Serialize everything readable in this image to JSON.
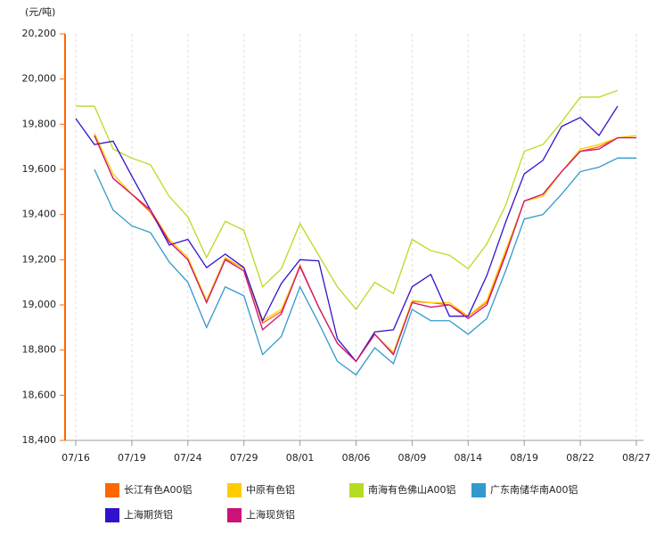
{
  "chart_data": {
    "type": "line",
    "y_unit": "(元/吨)",
    "categories": [
      "07/16",
      null,
      null,
      "07/19",
      null,
      null,
      "07/24",
      null,
      null,
      "07/29",
      null,
      null,
      "08/01",
      null,
      null,
      "08/06",
      null,
      null,
      "08/09",
      null,
      null,
      "08/14",
      null,
      null,
      "08/19",
      null,
      null,
      "08/22",
      null,
      null,
      "08/27"
    ],
    "ylim": [
      18400,
      20200
    ],
    "yticks": [
      {
        "value": 18400,
        "label": "18,400"
      },
      {
        "value": 18600,
        "label": "18,600"
      },
      {
        "value": 18800,
        "label": "18,800"
      },
      {
        "value": 19000,
        "label": "19,000"
      },
      {
        "value": 19200,
        "label": "19,200"
      },
      {
        "value": 19400,
        "label": "19,400"
      },
      {
        "value": 19600,
        "label": "19,600"
      },
      {
        "value": 19800,
        "label": "19,800"
      },
      {
        "value": 20000,
        "label": "20,000"
      },
      {
        "value": 20200,
        "label": "20,200"
      }
    ],
    "grid": true,
    "series": [
      {
        "name": "长江有色A00铝",
        "color": "#ff6600",
        "values": [
          null,
          19750,
          19560,
          19490,
          19410,
          19280,
          19200,
          19015,
          19205,
          19160,
          18920,
          18970,
          19175,
          18990,
          18830,
          18750,
          18870,
          18785,
          19015,
          19010,
          19000,
          18950,
          19010,
          19230,
          19460,
          19490,
          19590,
          19680,
          19700,
          19740,
          19740
        ]
      },
      {
        "name": "中原有色铝",
        "color": "#ffcc00",
        "values": [
          null,
          19760,
          19580,
          19490,
          19420,
          19290,
          19210,
          19020,
          19210,
          19160,
          18930,
          18980,
          19170,
          18990,
          18830,
          18750,
          18870,
          18790,
          19020,
          19010,
          19010,
          18950,
          19020,
          19240,
          19460,
          19480,
          19590,
          19690,
          19710,
          19740,
          19750
        ]
      },
      {
        "name": "南海有色佛山A00铝",
        "color": "#b5dc22",
        "values": [
          19880,
          19880,
          19690,
          19650,
          19620,
          19480,
          19390,
          19210,
          19370,
          19330,
          19080,
          19160,
          19360,
          19220,
          19080,
          18980,
          19100,
          19050,
          19290,
          19240,
          19220,
          19160,
          19270,
          19440,
          19680,
          19710,
          19810,
          19920,
          19920,
          19950,
          null
        ]
      },
      {
        "name": "广东南储华南A00铝",
        "color": "#3399cc",
        "values": [
          null,
          19600,
          19420,
          19350,
          19320,
          19190,
          19100,
          18900,
          19080,
          19040,
          18780,
          18860,
          19080,
          18920,
          18750,
          18690,
          18810,
          18740,
          18980,
          18930,
          18930,
          18870,
          18940,
          19150,
          19380,
          19400,
          19490,
          19590,
          19610,
          19650,
          19650
        ]
      },
      {
        "name": "上海期货铝",
        "color": "#3311cc",
        "values": [
          19825,
          19710,
          19725,
          19570,
          19420,
          19265,
          19290,
          19165,
          19225,
          19165,
          18930,
          19095,
          19200,
          19195,
          18850,
          18750,
          18880,
          18890,
          19080,
          19135,
          18950,
          18950,
          19130,
          19365,
          19580,
          19640,
          19790,
          19830,
          19750,
          19880,
          null
        ]
      },
      {
        "name": "上海现货铝",
        "color": "#cc1177",
        "values": [
          null,
          19750,
          19560,
          19490,
          19420,
          19280,
          19200,
          19010,
          19200,
          19150,
          18890,
          18960,
          19170,
          18990,
          18830,
          18750,
          18870,
          18780,
          19010,
          18990,
          19000,
          18940,
          19000,
          19220,
          19460,
          19490,
          19590,
          19680,
          19690,
          19740,
          19740
        ]
      }
    ]
  }
}
